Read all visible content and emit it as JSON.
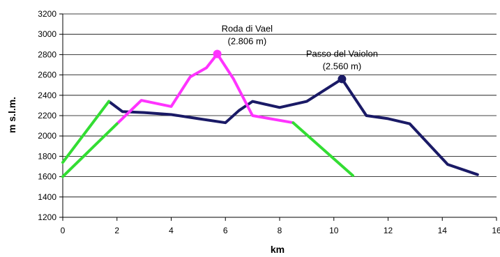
{
  "chart_data": {
    "type": "line",
    "title": "",
    "xlabel": "km",
    "ylabel": "m s.l.m.",
    "xlim": [
      0,
      16
    ],
    "ylim": [
      1200,
      3200
    ],
    "x_ticks": [
      0,
      2,
      4,
      6,
      8,
      10,
      12,
      14,
      16
    ],
    "x_tick_labels": [
      "0",
      "2",
      "4",
      "6",
      "8",
      "10",
      "12",
      "14",
      "16"
    ],
    "y_ticks": [
      1200,
      1400,
      1600,
      1800,
      2000,
      2200,
      2400,
      2600,
      2800,
      3000,
      3200
    ],
    "y_tick_labels": [
      "1200",
      "1400",
      "1600",
      "1800",
      "2000",
      "2200",
      "2400",
      "2600",
      "2800",
      "3000",
      "3200"
    ],
    "grid": {
      "horizontal": true,
      "vertical": false
    },
    "legend": "none",
    "series": [
      {
        "color": "#1a1a66",
        "x": [
          1.7,
          2.2,
          3.0,
          4.0,
          5.0,
          6.0,
          6.5,
          7.0,
          8.0,
          9.0,
          10.3,
          11.2,
          12.0,
          12.8,
          14.2,
          15.3
        ],
        "y": [
          2340,
          2240,
          2230,
          2210,
          2170,
          2130,
          2250,
          2340,
          2280,
          2340,
          2560,
          2200,
          2170,
          2120,
          1720,
          1620
        ]
      },
      {
        "color": "#ff33ff",
        "x": [
          2.0,
          2.9,
          4.0,
          4.7,
          5.3,
          5.7,
          6.3,
          7.0,
          8.5
        ],
        "y": [
          2120,
          2350,
          2290,
          2580,
          2670,
          2806,
          2560,
          2200,
          2130
        ]
      },
      {
        "color": "#33dd33",
        "x": [
          0.0,
          1.7
        ],
        "y": [
          1740,
          2340
        ]
      },
      {
        "color": "#33dd33",
        "x": [
          0.0,
          2.0
        ],
        "y": [
          1600,
          2120
        ]
      },
      {
        "color": "#33dd33",
        "x": [
          8.5,
          10.7
        ],
        "y": [
          2130,
          1610
        ]
      }
    ],
    "markers": [
      {
        "x": 5.7,
        "y": 2806,
        "color": "#ff33ff"
      },
      {
        "x": 10.3,
        "y": 2560,
        "color": "#1a1a66"
      }
    ],
    "annotations": [
      {
        "lines": [
          "Roda di Vael",
          "(2.806 m)"
        ],
        "x": 6.8,
        "y": 2806
      },
      {
        "lines": [
          "Passo del Vaiolon",
          "(2.560 m)"
        ],
        "x": 10.3,
        "y": 2560
      }
    ]
  }
}
